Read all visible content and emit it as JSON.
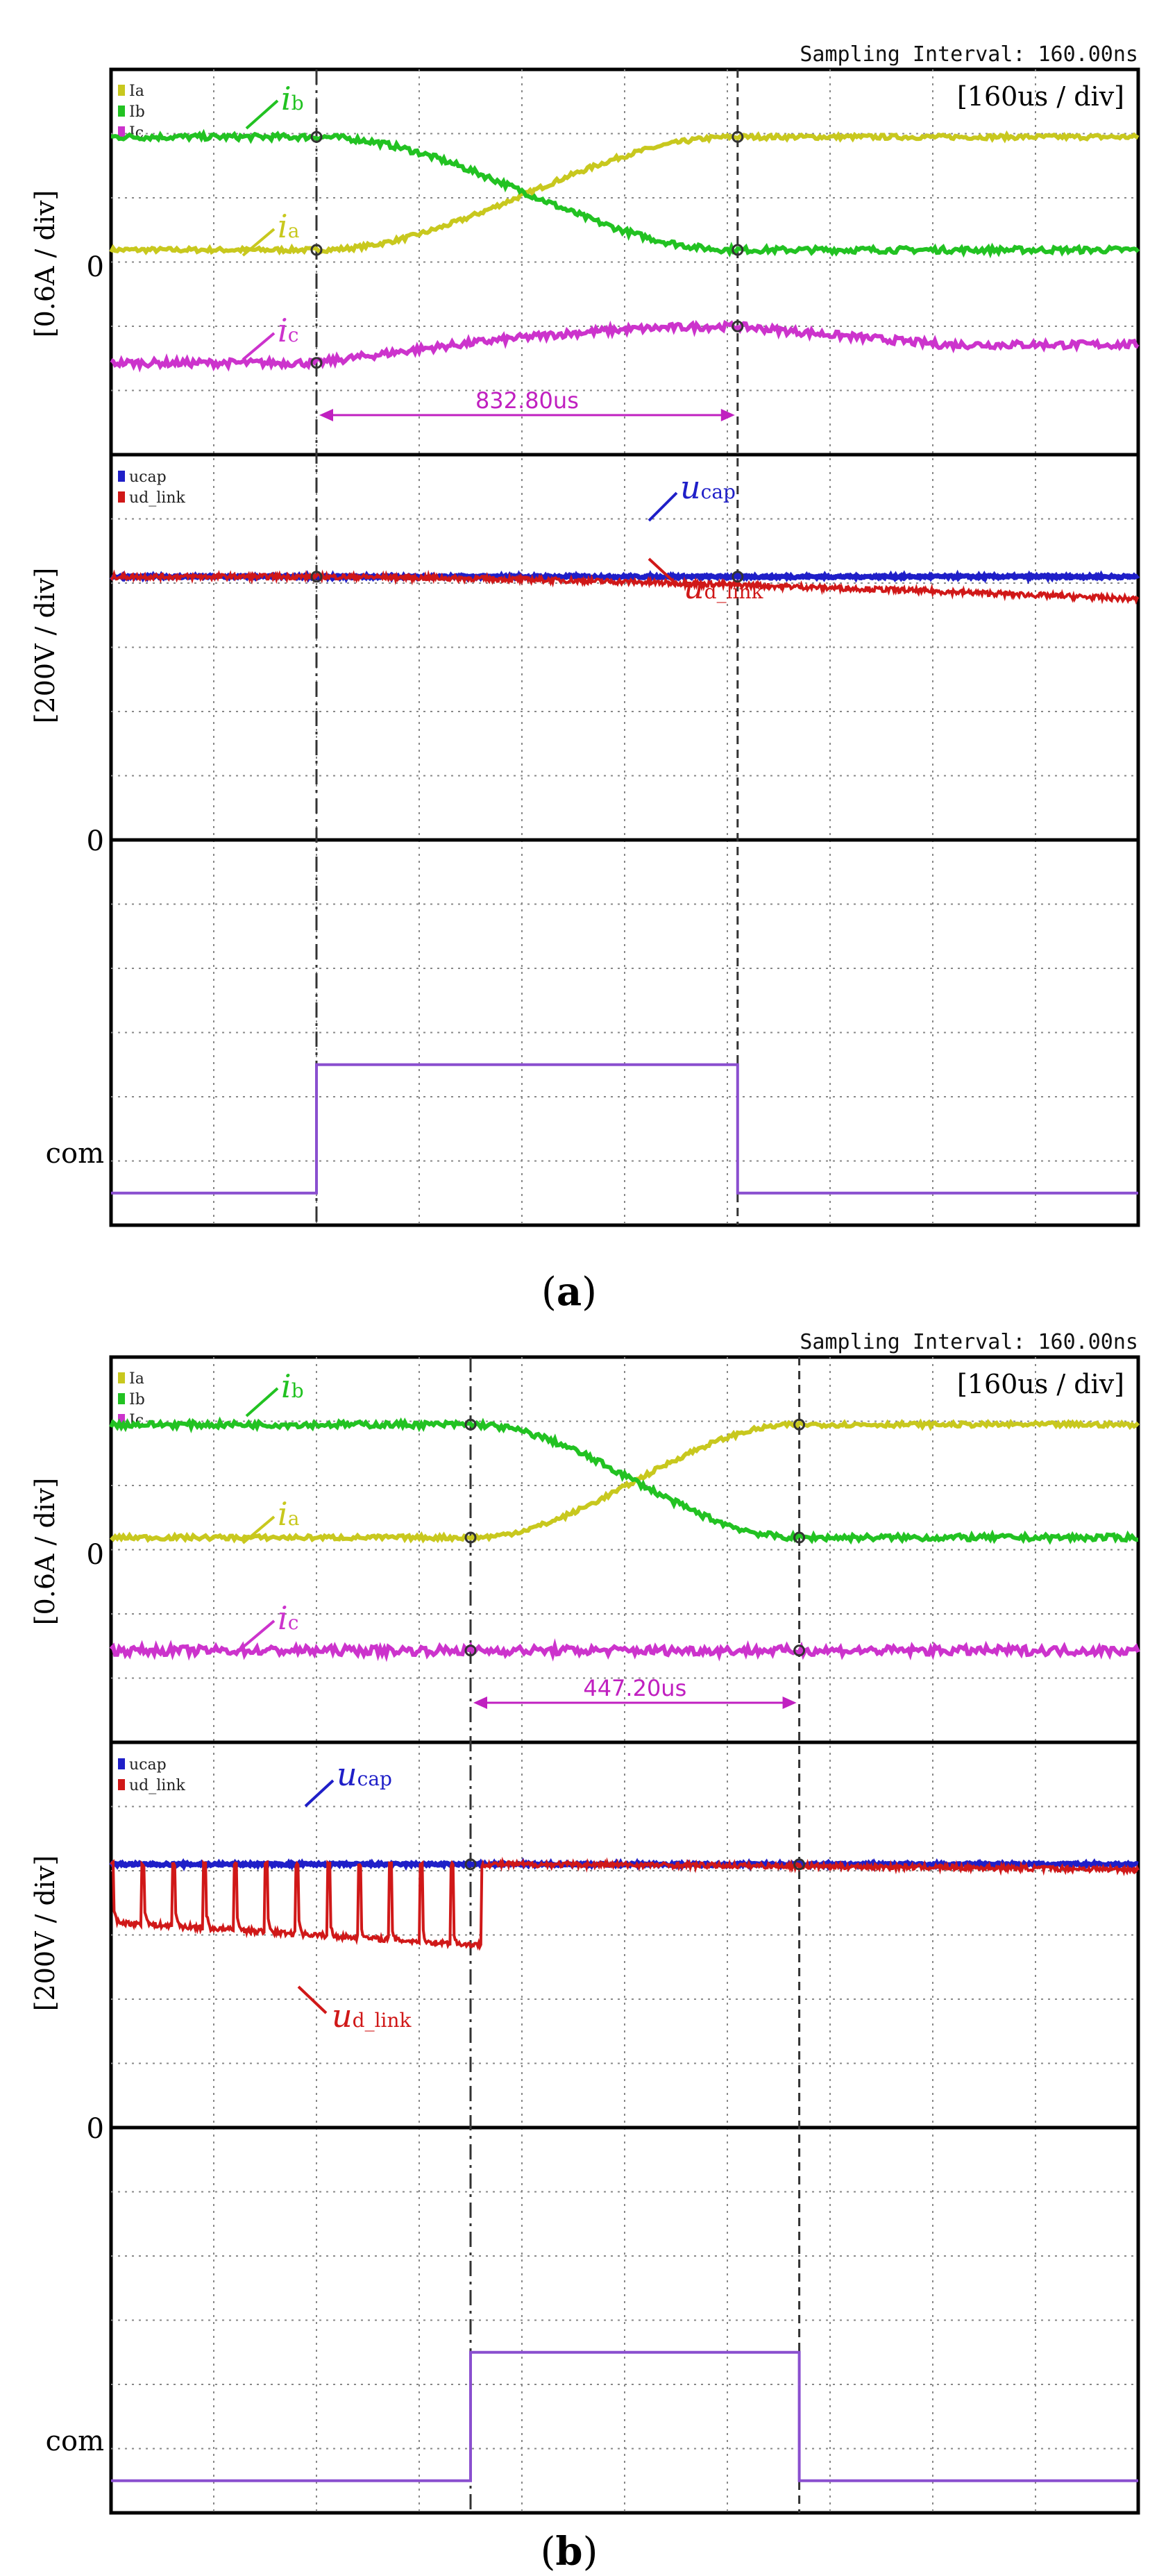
{
  "chart_data": [
    {
      "type": "line",
      "panel": "a",
      "caption": "(a)",
      "caption_letter": "a",
      "sampling_interval": "Sampling Interval:  160.00ns",
      "time_per_div": "[160us / div]",
      "x_divisions": 10,
      "transition_start_div": 2.0,
      "transition_end_div": 6.1,
      "duration_label": "832.80us",
      "current": {
        "ylabel": "[0.6A / div]",
        "zero_label": "0",
        "legend": [
          "Ia",
          "Ib",
          "Ic"
        ],
        "series": [
          {
            "name": "ia",
            "label": "i",
            "sub": "a",
            "color": "#c8c81e",
            "before": 0.0,
            "after": 1.55,
            "noise": 0.03
          },
          {
            "name": "ib",
            "label": "i",
            "sub": "b",
            "color": "#22c222",
            "before": 1.55,
            "after": 0.0,
            "noise": 0.04
          },
          {
            "name": "ic",
            "label": "i",
            "sub": "c",
            "color": "#cc33cc",
            "before": -1.55,
            "after": -1.05,
            "bump": true,
            "noise": 0.05
          }
        ]
      },
      "voltage": {
        "ylabel": "[200V / div]",
        "zero_label": "0",
        "legend": [
          "ucap",
          "ud_link"
        ],
        "series": [
          {
            "name": "ucap",
            "label": "u",
            "sub": "cap",
            "color": "#1f1fc8",
            "level": 4.1,
            "sag_after": 0.0,
            "noise": 0.02
          },
          {
            "name": "ud_link",
            "label": "u",
            "sub": "d_link",
            "color": "#d01818",
            "level": 4.1,
            "sag_after": 0.35,
            "noise": 0.04
          }
        ]
      },
      "command": {
        "com_label": "com",
        "high_level": 2.0,
        "low_level": 0.0,
        "color": "#8a4fcf"
      }
    },
    {
      "type": "line",
      "panel": "b",
      "caption": "(b)",
      "caption_letter": "b",
      "sampling_interval": "Sampling Interval:  160.00ns",
      "time_per_div": "[160us / div]",
      "x_divisions": 10,
      "transition_start_div": 3.5,
      "transition_end_div": 6.7,
      "duration_label": "447.20us",
      "current": {
        "ylabel": "[0.6A / div]",
        "zero_label": "0",
        "legend": [
          "Ia",
          "Ib",
          "Ic"
        ],
        "series": [
          {
            "name": "ia",
            "label": "i",
            "sub": "a",
            "color": "#c8c81e",
            "before": 0.0,
            "after": 1.55,
            "noise": 0.03
          },
          {
            "name": "ib",
            "label": "i",
            "sub": "b",
            "color": "#22c222",
            "before": 1.55,
            "after": 0.0,
            "noise": 0.04
          },
          {
            "name": "ic",
            "label": "i",
            "sub": "c",
            "color": "#cc33cc",
            "before": -1.55,
            "after": -1.55,
            "bump": false,
            "noise": 0.06
          }
        ]
      },
      "voltage": {
        "ylabel": "[200V / div]",
        "zero_label": "0",
        "legend": [
          "ucap",
          "ud_link"
        ],
        "series": [
          {
            "name": "ucap",
            "label": "u",
            "sub": "cap",
            "color": "#1f1fc8",
            "level": 4.1,
            "sag_after": 0.0,
            "noise": 0.02
          },
          {
            "name": "ud_link",
            "label": "u",
            "sub": "d_link",
            "color": "#d01818",
            "level": 4.1,
            "pulsed_before": true,
            "pulse_low_start": 3.2,
            "pulse_low_end": 2.85,
            "pulse_count": 12,
            "sag_after": 0.08,
            "noise": 0.04
          }
        ]
      },
      "command": {
        "com_label": "com",
        "high_level": 2.0,
        "low_level": 0.0,
        "color": "#8a4fcf"
      }
    }
  ]
}
